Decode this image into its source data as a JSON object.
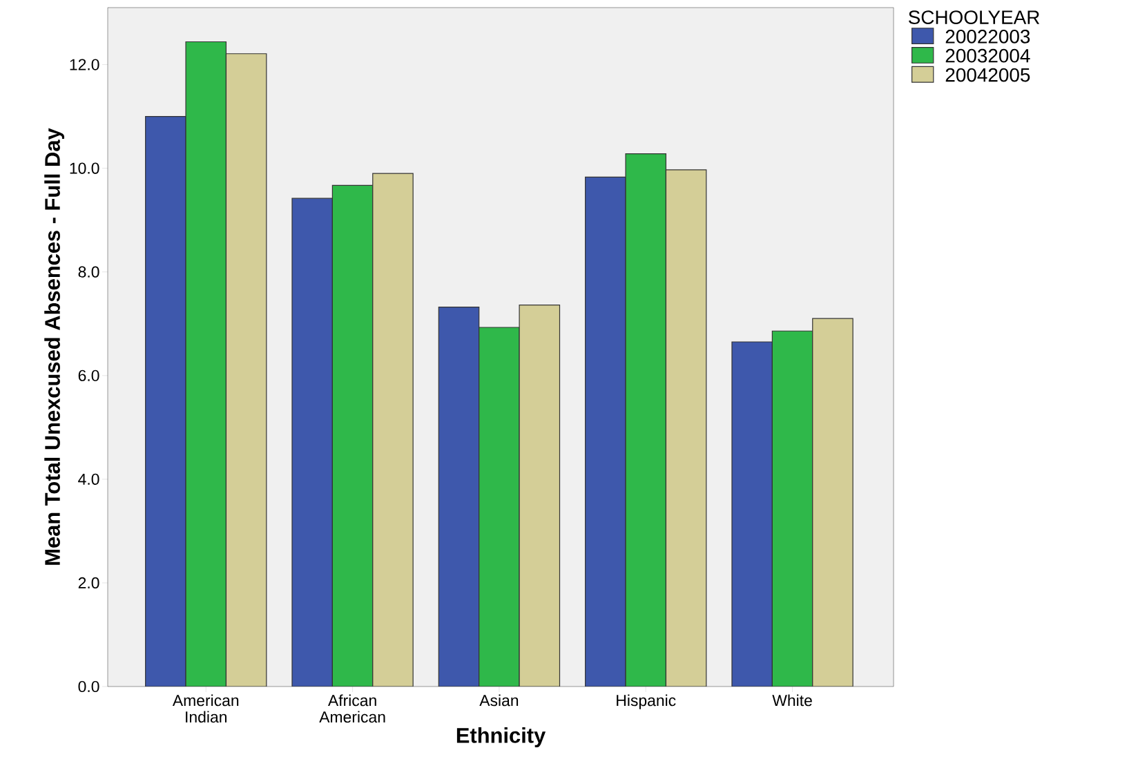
{
  "chart_data": {
    "type": "bar",
    "xlabel": "Ethnicity",
    "ylabel": "Mean Total Unexcused Absences - Full Day",
    "legend_title": "SCHOOLYEAR",
    "categories": [
      "American Indian",
      "African American",
      "Asian",
      "Hispanic",
      "White"
    ],
    "series": [
      {
        "name": "20022003",
        "color": "#3e58ac",
        "values": [
          11.0,
          9.42,
          7.32,
          9.83,
          6.65
        ]
      },
      {
        "name": "20032004",
        "color": "#2fb84a",
        "values": [
          12.44,
          9.67,
          6.93,
          10.28,
          6.86
        ]
      },
      {
        "name": "20042005",
        "color": "#d4ce97",
        "values": [
          12.21,
          9.9,
          7.36,
          9.97,
          7.1
        ]
      }
    ],
    "ylim": [
      0,
      13.1
    ],
    "yticks": [
      {
        "value": 0,
        "label": "0.0"
      },
      {
        "value": 2,
        "label": "2.0"
      },
      {
        "value": 4,
        "label": "4.0"
      },
      {
        "value": 6,
        "label": "6.0"
      },
      {
        "value": 8,
        "label": "8.0"
      },
      {
        "value": 10,
        "label": "10.0"
      },
      {
        "value": 12,
        "label": "12.0"
      }
    ],
    "grid": false,
    "legend": "top right"
  }
}
